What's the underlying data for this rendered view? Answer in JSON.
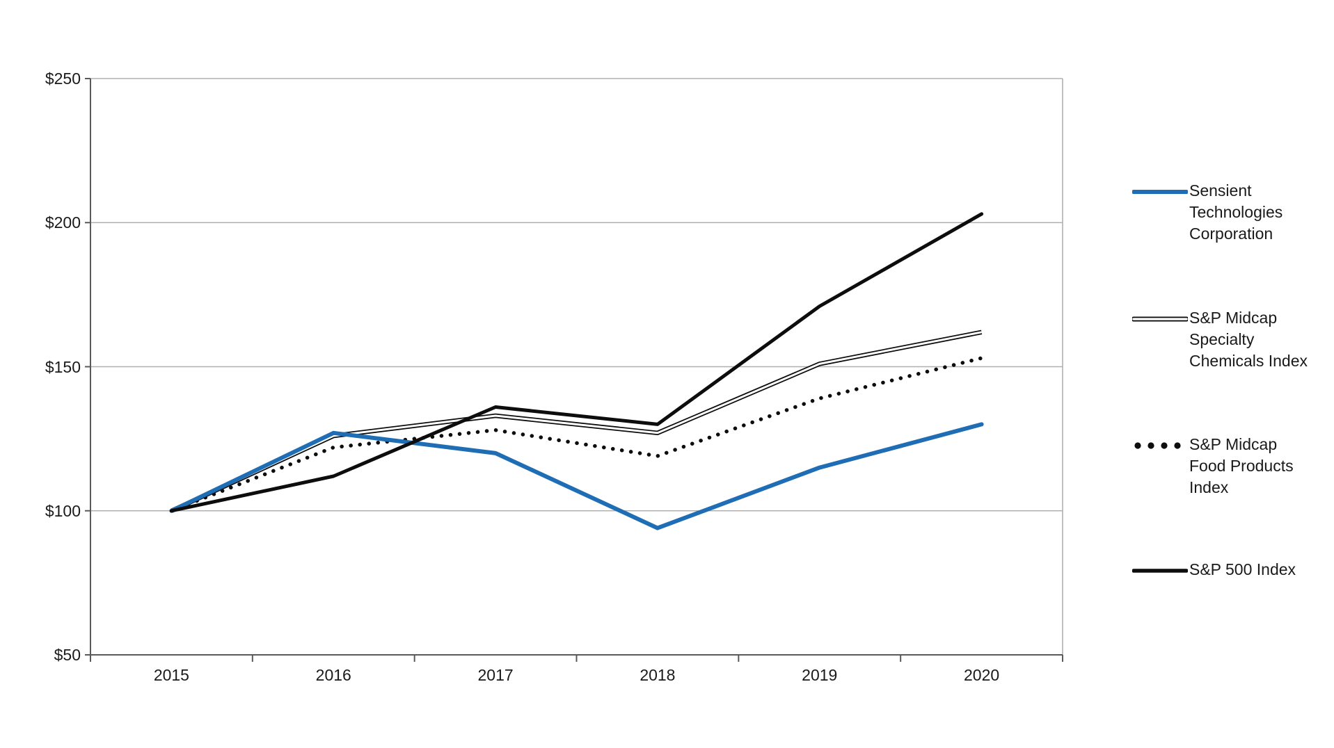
{
  "chart_data": {
    "type": "line",
    "title": "",
    "categories": [
      "2015",
      "2016",
      "2017",
      "2018",
      "2019",
      "2020"
    ],
    "series": [
      {
        "name": "Sensient Technologies Corporation",
        "style": "solid-blue",
        "color": "#1f6db4",
        "values": [
          100,
          127,
          120,
          94,
          115,
          130
        ]
      },
      {
        "name": "S&P Midcap Specialty Chemicals Index",
        "style": "double",
        "color": "#000000",
        "values": [
          100,
          126,
          133,
          127,
          151,
          162
        ]
      },
      {
        "name": "S&P Midcap Food Products Index",
        "style": "dotted",
        "color": "#000000",
        "values": [
          100,
          122,
          128,
          119,
          139,
          153
        ]
      },
      {
        "name": "S&P 500 Index",
        "style": "solid-black",
        "color": "#000000",
        "values": [
          100,
          112,
          136,
          130,
          171,
          203
        ]
      }
    ],
    "xlabel": "",
    "ylabel": "",
    "ylim": [
      50,
      250
    ],
    "yticks": [
      {
        "label": "$250",
        "value": 250
      },
      {
        "label": "$200",
        "value": 200
      },
      {
        "label": "$150",
        "value": 150
      },
      {
        "label": "$100",
        "value": 100
      },
      {
        "label": "$50",
        "value": 50
      }
    ],
    "grid": true,
    "legend_position": "right"
  },
  "legend": {
    "items": [
      {
        "style": "solid-blue",
        "color": "#1f6db4",
        "label_lines": [
          "Sensient",
          "Technologies",
          "Corporation"
        ]
      },
      {
        "style": "double",
        "color": "#000000",
        "label_lines": [
          "S&P Midcap",
          "Specialty",
          "Chemicals Index"
        ]
      },
      {
        "style": "dotted",
        "color": "#000000",
        "label_lines": [
          "S&P Midcap",
          "Food Products",
          "Index"
        ]
      },
      {
        "style": "solid-black",
        "color": "#000000",
        "label_lines": [
          "S&P 500 Index"
        ]
      }
    ]
  },
  "colors": {
    "accent_blue": "#1f6db4",
    "line_black": "#0d0d0d",
    "gridline": "#b0b0b0",
    "axis": "#595959",
    "text": "#1a1a1a",
    "background": "#ffffff"
  }
}
